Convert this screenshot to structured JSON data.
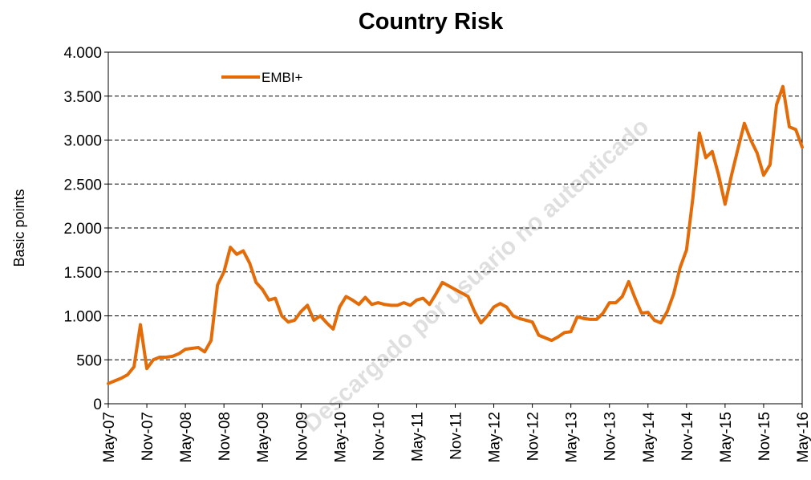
{
  "chart_data": {
    "type": "line",
    "title": "Country Risk",
    "y_label": "Basic points",
    "watermark": "Descargado por usuario no autenticado",
    "categories": [
      "May-07",
      null,
      null,
      null,
      null,
      null,
      "Nov-07",
      null,
      null,
      null,
      null,
      null,
      "May-08",
      null,
      null,
      null,
      null,
      null,
      "Nov-08",
      null,
      null,
      null,
      null,
      null,
      "May-09",
      null,
      null,
      null,
      null,
      null,
      "Nov-09",
      null,
      null,
      null,
      null,
      null,
      "May-10",
      null,
      null,
      null,
      null,
      null,
      "Nov-10",
      null,
      null,
      null,
      null,
      null,
      "May-11",
      null,
      null,
      null,
      null,
      null,
      "Nov-11",
      null,
      null,
      null,
      null,
      null,
      "May-12",
      null,
      null,
      null,
      null,
      null,
      "Nov-12",
      null,
      null,
      null,
      null,
      null,
      "May-13",
      null,
      null,
      null,
      null,
      null,
      "Nov-13",
      null,
      null,
      null,
      null,
      null,
      "May-14",
      null,
      null,
      null,
      null,
      null,
      "Nov-14",
      null,
      null,
      null,
      null,
      null,
      "May-15",
      null,
      null,
      null,
      null,
      null,
      "Nov-15",
      null,
      null,
      null,
      null,
      null,
      "May-16"
    ],
    "series": [
      {
        "name": "EMBI+",
        "color": "#e36c09",
        "values": [
          230,
          260,
          290,
          330,
          420,
          900,
          400,
          500,
          530,
          530,
          540,
          570,
          620,
          630,
          640,
          590,
          720,
          1350,
          1500,
          1780,
          1700,
          1740,
          1600,
          1380,
          1300,
          1180,
          1200,
          1000,
          930,
          950,
          1050,
          1120,
          950,
          1000,
          920,
          850,
          1100,
          1220,
          1180,
          1130,
          1210,
          1130,
          1150,
          1130,
          1120,
          1120,
          1150,
          1120,
          1180,
          1200,
          1130,
          1250,
          1380,
          1340,
          1300,
          1260,
          1220,
          1050,
          920,
          1000,
          1100,
          1140,
          1100,
          1000,
          970,
          950,
          930,
          780,
          750,
          720,
          760,
          810,
          820,
          990,
          970,
          960,
          960,
          1030,
          1150,
          1150,
          1220,
          1390,
          1200,
          1030,
          1040,
          950,
          920,
          1050,
          1250,
          1550,
          1750,
          2350,
          3080,
          2800,
          2870,
          2600,
          2270,
          2600,
          2900,
          3190,
          3000,
          2850,
          2600,
          2720,
          3400,
          3610,
          3150,
          3120,
          2920
        ]
      }
    ],
    "ylim": [
      0,
      4000
    ],
    "yticks": [
      0,
      500,
      {
        "value": 1000,
        "label": "1.000"
      },
      {
        "value": 1500,
        "label": "1.500"
      },
      {
        "value": 2000,
        "label": "2.000"
      },
      {
        "value": 2500,
        "label": "2.500"
      },
      {
        "value": 3000,
        "label": "3.000"
      },
      {
        "value": 3500,
        "label": "3.500"
      },
      {
        "value": 4000,
        "label": "4.000"
      }
    ],
    "grid": true,
    "legend": "top-left"
  }
}
